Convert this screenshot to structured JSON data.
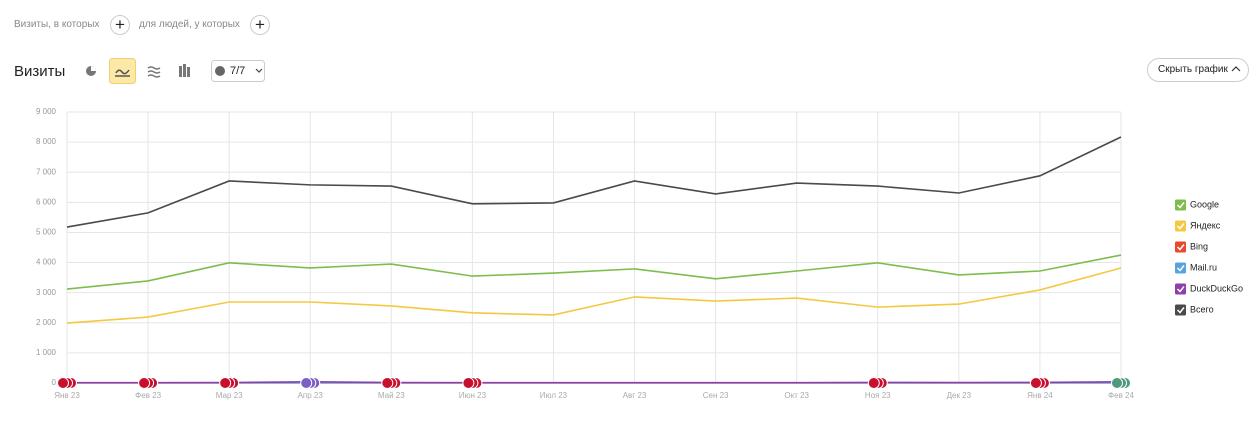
{
  "filters": {
    "visits_label": "Визиты, в которых",
    "people_label": "для людей, у которых"
  },
  "toolbar": {
    "title": "Визиты",
    "annotations_count": "7/7",
    "hide_chart": "Скрыть график"
  },
  "chart_data": {
    "type": "line",
    "categories": [
      "Янв 23",
      "Фев 23",
      "Мар 23",
      "Апр 23",
      "Май 23",
      "Июн 23",
      "Июл 23",
      "Авг 23",
      "Сен 23",
      "Окт 23",
      "Ноя 23",
      "Дек 23",
      "Янв 24",
      "Фев 24"
    ],
    "series": [
      {
        "name": "Google",
        "color": "#7ebd4b",
        "values": [
          3120,
          3390,
          3990,
          3820,
          3950,
          3550,
          3650,
          3790,
          3460,
          3720,
          3990,
          3590,
          3720,
          4250
        ]
      },
      {
        "name": "Яндекс",
        "color": "#f5c842",
        "values": [
          1990,
          2190,
          2690,
          2690,
          2560,
          2330,
          2260,
          2860,
          2720,
          2820,
          2520,
          2620,
          3090,
          3820
        ]
      },
      {
        "name": "Bing",
        "color": "#e8492f",
        "values": [
          5,
          5,
          5,
          5,
          5,
          5,
          5,
          5,
          5,
          5,
          5,
          5,
          5,
          5
        ]
      },
      {
        "name": "Mail.ru",
        "color": "#5aa3dc",
        "values": [
          5,
          5,
          5,
          5,
          5,
          5,
          5,
          5,
          5,
          5,
          5,
          5,
          5,
          5
        ]
      },
      {
        "name": "DuckDuckGo",
        "color": "#8e3fa8",
        "values": [
          10,
          10,
          15,
          40,
          15,
          10,
          10,
          10,
          10,
          10,
          20,
          15,
          20,
          40
        ]
      },
      {
        "name": "Всего",
        "color": "#4a4a4a",
        "values": [
          5180,
          5650,
          6710,
          6580,
          6540,
          5950,
          5980,
          6710,
          6280,
          6640,
          6540,
          6310,
          6880,
          8170
        ]
      }
    ],
    "ylim": [
      0,
      9000
    ],
    "yticks": [
      0,
      {
        "value": 1000,
        "label": "1 000"
      },
      {
        "value": 2000,
        "label": "2 000"
      },
      {
        "value": 3000,
        "label": "3 000"
      },
      {
        "value": 4000,
        "label": "4 000"
      },
      {
        "value": 5000,
        "label": "5 000"
      },
      {
        "value": 6000,
        "label": "6 000"
      },
      {
        "value": 7000,
        "label": "7 000"
      },
      {
        "value": 8000,
        "label": "8 000"
      },
      {
        "value": 9000,
        "label": "9 000"
      }
    ],
    "grid": true,
    "legend": "right"
  }
}
